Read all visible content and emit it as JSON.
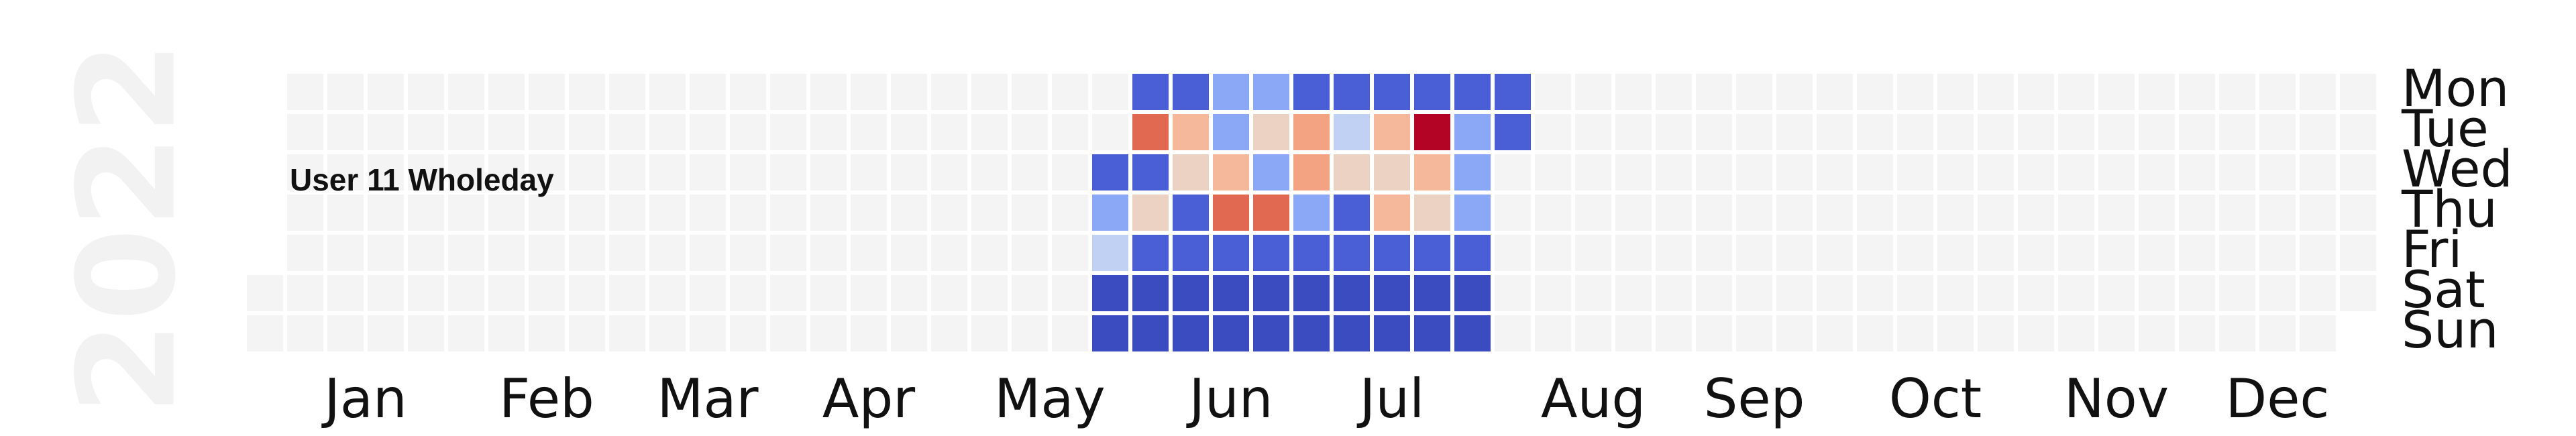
{
  "chart_data": {
    "type": "heatmap",
    "title": "User 11 Wholeday",
    "year": "2022",
    "month_labels": [
      "Jan",
      "Feb",
      "Mar",
      "Apr",
      "May",
      "Jun",
      "Jul",
      "Aug",
      "Sep",
      "Oct",
      "Nov",
      "Dec"
    ],
    "day_labels": [
      "Mon",
      "Tue",
      "Wed",
      "Thu",
      "Fri",
      "Sat",
      "Sun"
    ],
    "start_date": "2022-01-01",
    "end_date": "2022-12-31",
    "empty_color": "#f4f4f4",
    "colors": {
      "vlow": "#3b4cc0",
      "low": "#4a5fd6",
      "lowmid": "#8aa8f5",
      "light": "#c0d1f4",
      "neutral": "#ecd2c3",
      "warm": "#f5b89a",
      "mid": "#f3a381",
      "high": "#e26951",
      "peak": "#b40426"
    },
    "weeks_dates": [
      "2022-05-23",
      "2022-05-30",
      "2022-06-06",
      "2022-06-13",
      "2022-06-20",
      "2022-06-27",
      "2022-07-04",
      "2022-07-11",
      "2022-07-18",
      "2022-07-25",
      "2022-08-01"
    ],
    "data_weeks": [
      {
        "week_of": "2022-05-23",
        "days": [
          null,
          null,
          "low",
          "lowmid",
          "light",
          "vlow",
          "vlow"
        ]
      },
      {
        "week_of": "2022-05-30",
        "days": [
          "low",
          "high",
          "low",
          "neutral",
          "low",
          "vlow",
          "vlow"
        ]
      },
      {
        "week_of": "2022-06-06",
        "days": [
          "low",
          "warm",
          "neutral",
          "low",
          "low",
          "vlow",
          "vlow"
        ]
      },
      {
        "week_of": "2022-06-13",
        "days": [
          "lowmid",
          "lowmid",
          "warm",
          "high",
          "low",
          "vlow",
          "vlow"
        ]
      },
      {
        "week_of": "2022-06-20",
        "days": [
          "lowmid",
          "neutral",
          "lowmid",
          "high",
          "low",
          "vlow",
          "vlow"
        ]
      },
      {
        "week_of": "2022-06-27",
        "days": [
          "low",
          "mid",
          "mid",
          "lowmid",
          "low",
          "vlow",
          "vlow"
        ]
      },
      {
        "week_of": "2022-07-04",
        "days": [
          "low",
          "light",
          "neutral",
          "low",
          "low",
          "vlow",
          "vlow"
        ]
      },
      {
        "week_of": "2022-07-11",
        "days": [
          "low",
          "warm",
          "neutral",
          "warm",
          "low",
          "vlow",
          "vlow"
        ]
      },
      {
        "week_of": "2022-07-18",
        "days": [
          "low",
          "peak",
          "warm",
          "neutral",
          "low",
          "vlow",
          "vlow"
        ]
      },
      {
        "week_of": "2022-07-25",
        "days": [
          "low",
          "lowmid",
          "lowmid",
          "lowmid",
          "low",
          "vlow",
          "vlow"
        ]
      },
      {
        "week_of": "2022-08-01",
        "days": [
          "low",
          "low",
          null,
          null,
          null,
          null,
          null
        ]
      }
    ]
  }
}
